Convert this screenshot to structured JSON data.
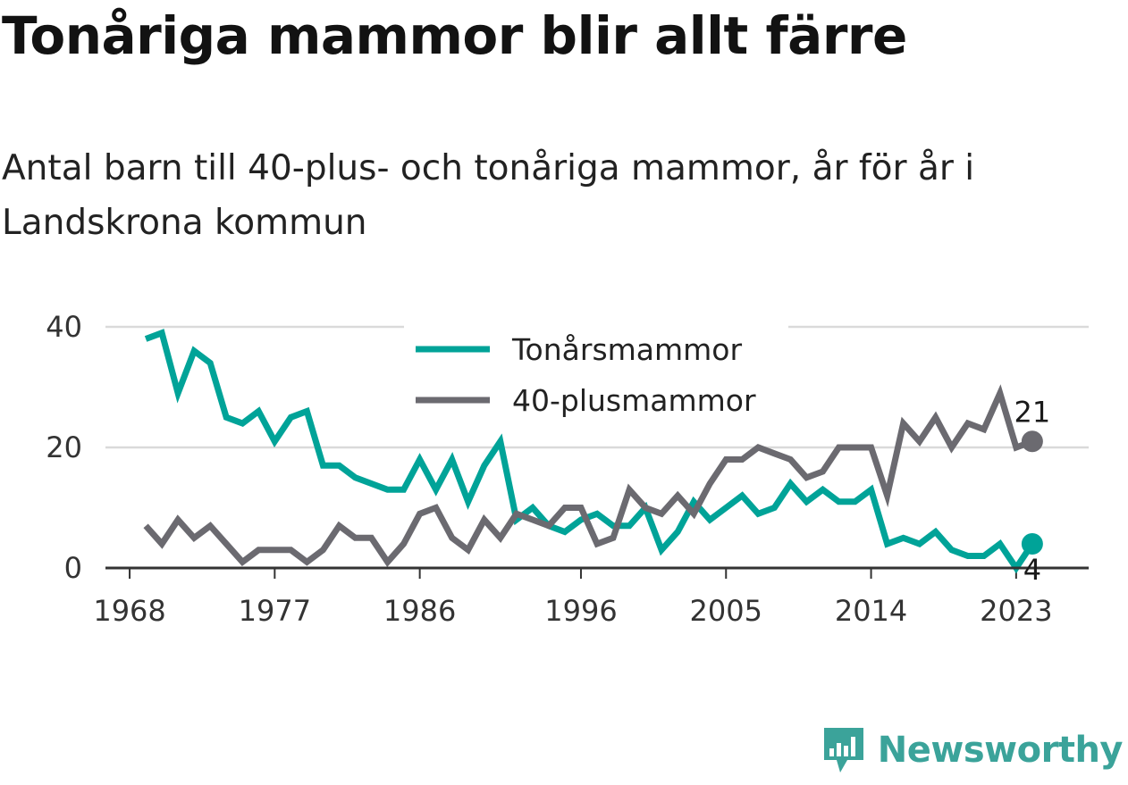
{
  "title": "Tonåriga mammor blir allt färre",
  "subtitle": "Antal barn till 40-plus- och tonåriga mammor, år för år i Landskrona kommun",
  "brand": {
    "name": "Newsworthy",
    "logo_icon": "newsworthy-logo-icon"
  },
  "chart_data": {
    "type": "line",
    "x": [
      1969,
      1970,
      1971,
      1972,
      1973,
      1974,
      1975,
      1976,
      1977,
      1978,
      1979,
      1980,
      1981,
      1982,
      1983,
      1984,
      1985,
      1986,
      1987,
      1988,
      1989,
      1990,
      1991,
      1992,
      1993,
      1994,
      1995,
      1996,
      1997,
      1998,
      1999,
      2000,
      2001,
      2002,
      2003,
      2004,
      2005,
      2006,
      2007,
      2008,
      2009,
      2010,
      2011,
      2012,
      2013,
      2014,
      2015,
      2016,
      2017,
      2018,
      2019,
      2020,
      2021,
      2022,
      2023,
      2024
    ],
    "x_ticks": [
      "1968",
      "1977",
      "1986",
      "1996",
      "2005",
      "2014",
      "2023"
    ],
    "x_tick_values": [
      1968,
      1977,
      1986,
      1996,
      2005,
      2014,
      2023
    ],
    "y_ticks": [
      "0",
      "20",
      "40"
    ],
    "y_tick_values": [
      0,
      20,
      40
    ],
    "ylim": [
      0,
      40
    ],
    "xlim": [
      1966.5,
      2027.5
    ],
    "grid": true,
    "legend_position": "top-center",
    "series": [
      {
        "name": "Tonårsmammor",
        "color": "#00a398",
        "values": [
          38,
          39,
          29,
          36,
          34,
          25,
          24,
          26,
          21,
          25,
          26,
          17,
          17,
          15,
          14,
          13,
          13,
          18,
          13,
          18,
          11,
          17,
          21,
          8,
          10,
          7,
          6,
          8,
          9,
          7,
          7,
          10,
          3,
          6,
          11,
          8,
          10,
          12,
          9,
          10,
          14,
          11,
          13,
          11,
          11,
          13,
          4,
          5,
          4,
          6,
          3,
          2,
          2,
          4,
          0,
          4
        ],
        "end_label": "4"
      },
      {
        "name": "40-plusmammor",
        "color": "#6b6a70",
        "values": [
          7,
          4,
          8,
          5,
          7,
          4,
          1,
          3,
          3,
          3,
          1,
          3,
          7,
          5,
          5,
          1,
          4,
          9,
          10,
          5,
          3,
          8,
          5,
          9,
          8,
          7,
          10,
          10,
          4,
          5,
          13,
          10,
          9,
          12,
          9,
          14,
          18,
          18,
          20,
          19,
          18,
          15,
          16,
          20,
          20,
          20,
          12,
          24,
          21,
          25,
          20,
          24,
          23,
          29,
          20,
          21
        ],
        "end_label": "21"
      }
    ]
  }
}
